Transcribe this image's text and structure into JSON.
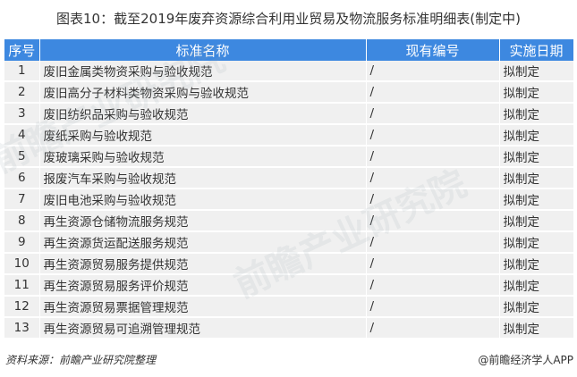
{
  "title": "图表10：截至2019年废弃资源综合利用业贸易及物流服务标准明细表(制定中)",
  "headers": [
    "序号",
    "标准名称",
    "现有编号",
    "实施日期"
  ],
  "rows": [
    [
      "1",
      "废旧金属类物资采购与验收规范",
      "/",
      "拟制定"
    ],
    [
      "2",
      "废旧高分子材料类物资采购与验收规范",
      "/",
      "拟制定"
    ],
    [
      "3",
      "废旧纺织品采购与验收规范",
      "/",
      "拟制定"
    ],
    [
      "4",
      "废纸采购与验收规范",
      "/",
      "拟制定"
    ],
    [
      "5",
      "废玻璃采购与验收规范",
      "/",
      "拟制定"
    ],
    [
      "6",
      "报废汽车采购与验收规范",
      "/",
      "拟制定"
    ],
    [
      "7",
      "废旧电池采购与验收规范",
      "/",
      "拟制定"
    ],
    [
      "8",
      "再生资源仓储物流服务规范",
      "/",
      "拟制定"
    ],
    [
      "9",
      "再生资源货运配送服务规范",
      "/",
      "拟制定"
    ],
    [
      "10",
      "再生资源贸易服务提供规范",
      "/",
      "拟制定"
    ],
    [
      "11",
      "再生资源贸易服务评价规范",
      "/",
      "拟制定"
    ],
    [
      "12",
      "再生资源贸易票据管理规范",
      "/",
      "拟制定"
    ],
    [
      "13",
      "再生资源贸易可追溯管理规范",
      "/",
      "拟制定"
    ]
  ],
  "watermark": "前瞻产业研究院",
  "source": "资料来源：前瞻产业研究院整理",
  "credit": "@前瞻经济学人APP",
  "colors": {
    "header": "#3d88e0",
    "row": "#f0f0f0"
  }
}
